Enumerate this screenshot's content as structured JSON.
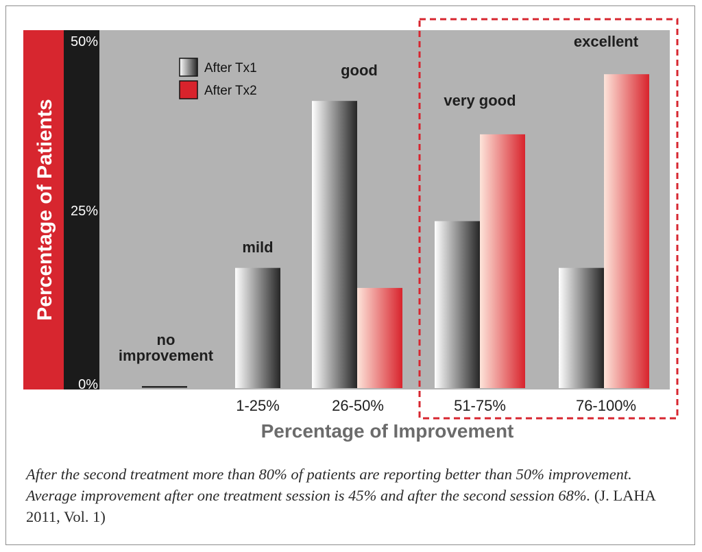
{
  "chart_data": {
    "type": "bar",
    "title": "",
    "ylabel": "Percentage of Patients",
    "xlabel": "Percentage of Improvement",
    "ylim": [
      0,
      50
    ],
    "y_ticks": [
      "0%",
      "25%",
      "50%"
    ],
    "y_tick_values": [
      0,
      25,
      50
    ],
    "categories": [
      "",
      "1-25%",
      "26-50%",
      "51-75%",
      "76-100%"
    ],
    "category_annotations": [
      "no\nimprovement",
      "mild",
      "good",
      "very good",
      "excellent"
    ],
    "series": [
      {
        "name": "After Tx1",
        "values": [
          0,
          18,
          43,
          25,
          18
        ]
      },
      {
        "name": "After Tx2",
        "values": [
          0,
          0,
          15,
          38,
          47
        ]
      }
    ],
    "legend_position": "top-left",
    "highlight_categories": [
      "51-75%",
      "76-100%"
    ],
    "colors": {
      "plot_background": "#b3b3b3",
      "ylabel_band": "#d7262f",
      "tick_band": "#1b1b1b",
      "tx1_light": "#ffffff",
      "tx1_dark": "#262626",
      "tx2_light": "#fde4da",
      "tx2_dark": "#d8232c",
      "highlight_border": "#d7262f",
      "axis_label": "#6b6b6b"
    }
  },
  "caption": {
    "main": "After the second treatment more than 80% of patients are reporting better than 50% improvement. Average improvement after one treatment session is 45% and after the second session 68%.",
    "citation": "(J. LAHA 2011, Vol. 1)"
  }
}
